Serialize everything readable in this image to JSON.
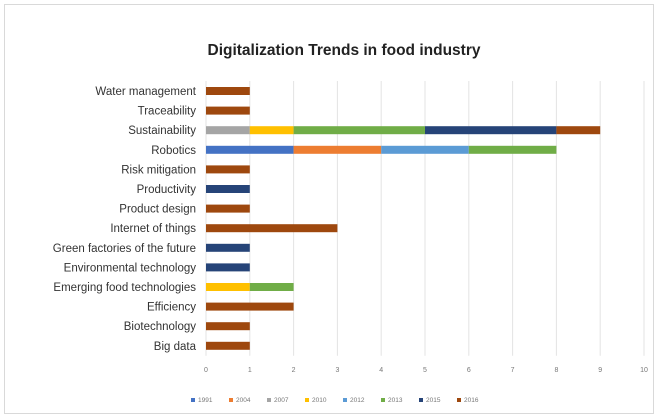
{
  "chart_data": {
    "type": "bar",
    "orientation": "horizontal",
    "stacked": true,
    "title": "Digitalization Trends in food industry",
    "xlabel": "",
    "ylabel": "",
    "xlim": [
      0,
      10
    ],
    "x_ticks": [
      "0",
      "1",
      "2",
      "3",
      "4",
      "5",
      "6",
      "7",
      "8",
      "9",
      "10"
    ],
    "grid": true,
    "legend_position": "bottom",
    "categories": [
      "Water management",
      "Traceability",
      "Sustainability",
      "Robotics",
      "Risk mitigation",
      "Productivity",
      "Product design",
      "Internet of things",
      "Green factories of the future",
      "Environmental technology",
      "Emerging food technologies",
      "Efficiency",
      "Biotechnology",
      "Big data"
    ],
    "series": [
      {
        "name": "1991",
        "color": "#4472c4",
        "values": [
          0,
          0,
          0,
          2,
          0,
          0,
          0,
          0,
          0,
          0,
          0,
          0,
          0,
          0
        ]
      },
      {
        "name": "2004",
        "color": "#ed7d31",
        "values": [
          0,
          0,
          0,
          2,
          0,
          0,
          0,
          0,
          0,
          0,
          0,
          0,
          0,
          0
        ]
      },
      {
        "name": "2007",
        "color": "#a5a5a5",
        "values": [
          0,
          0,
          1,
          0,
          0,
          0,
          0,
          0,
          0,
          0,
          0,
          0,
          0,
          0
        ]
      },
      {
        "name": "2010",
        "color": "#ffc000",
        "values": [
          0,
          0,
          1,
          0,
          0,
          0,
          0,
          0,
          0,
          0,
          1,
          0,
          0,
          0
        ]
      },
      {
        "name": "2012",
        "color": "#5b9bd5",
        "values": [
          0,
          0,
          0,
          2,
          0,
          0,
          0,
          0,
          0,
          0,
          0,
          0,
          0,
          0
        ]
      },
      {
        "name": "2013",
        "color": "#70ad47",
        "values": [
          0,
          0,
          3,
          2,
          0,
          0,
          0,
          0,
          0,
          0,
          1,
          0,
          0,
          0
        ]
      },
      {
        "name": "2015",
        "color": "#264478",
        "values": [
          0,
          0,
          3,
          0,
          0,
          1,
          0,
          0,
          1,
          1,
          0,
          0,
          0,
          0
        ]
      },
      {
        "name": "2016",
        "color": "#9e480e",
        "values": [
          1,
          1,
          1,
          0,
          1,
          0,
          1,
          3,
          0,
          0,
          0,
          2,
          1,
          1
        ]
      }
    ]
  }
}
